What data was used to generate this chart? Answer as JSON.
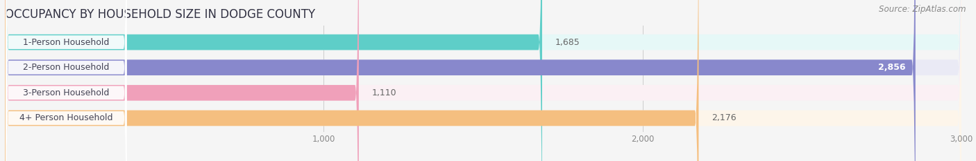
{
  "title": "OCCUPANCY BY HOUSEHOLD SIZE IN DODGE COUNTY",
  "source": "Source: ZipAtlas.com",
  "categories": [
    "1-Person Household",
    "2-Person Household",
    "3-Person Household",
    "4+ Person Household"
  ],
  "values": [
    1685,
    2856,
    1110,
    2176
  ],
  "bar_colors": [
    "#5ECEC8",
    "#8888CC",
    "#F0A0BA",
    "#F5BF80"
  ],
  "bg_colors": [
    "#E6F8F7",
    "#EAEAF5",
    "#FBF0F4",
    "#FDF5EA"
  ],
  "value_labels": [
    "1,685",
    "2,856",
    "1,110",
    "2,176"
  ],
  "value_inside": [
    false,
    true,
    false,
    false
  ],
  "xlim": [
    0,
    3000
  ],
  "xticks": [
    1000,
    2000,
    3000
  ],
  "xtick_labels": [
    "1,000",
    "2,000",
    "3,000"
  ],
  "title_fontsize": 12,
  "source_fontsize": 8.5,
  "cat_label_fontsize": 9,
  "value_fontsize": 9,
  "tick_fontsize": 8.5,
  "label_text_color": "#444455",
  "bg_color": "#F5F5F5"
}
